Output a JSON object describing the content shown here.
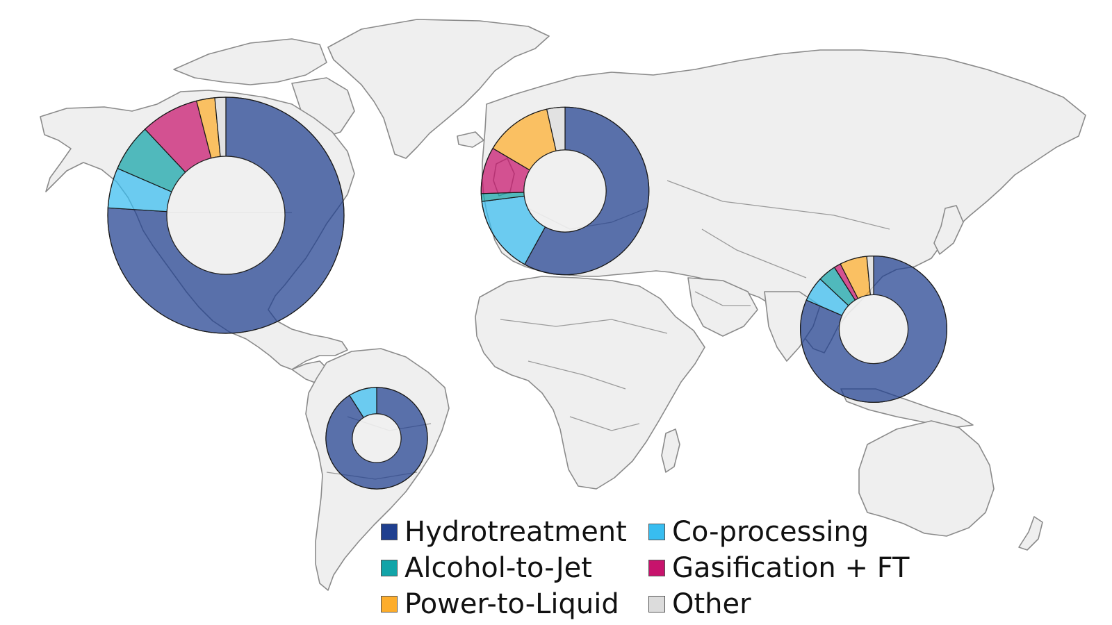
{
  "legend": [
    {
      "key": "hydrotreatment",
      "label": "Hydrotreatment",
      "color": "#1f3f8f"
    },
    {
      "key": "co_processing",
      "label": "Co-processing",
      "color": "#38bdf0"
    },
    {
      "key": "alcohol_to_jet",
      "label": "Alcohol-to-Jet",
      "color": "#12a4a8"
    },
    {
      "key": "gasification_ft",
      "label": "Gasification + FT",
      "color": "#c7136c"
    },
    {
      "key": "power_to_liquid",
      "label": "Power-to-Liquid",
      "color": "#fdad2b"
    },
    {
      "key": "other",
      "label": "Other",
      "color": "#dcdcdc"
    }
  ],
  "chart_data": [
    {
      "type": "pie",
      "region": "North America",
      "series": [
        "Hydrotreatment",
        "Co-processing",
        "Alcohol-to-Jet",
        "Gasification + FT",
        "Power-to-Liquid",
        "Other"
      ],
      "values": [
        76.0,
        5.5,
        6.5,
        8.0,
        2.5,
        1.5
      ],
      "relative_size": 1.0
    },
    {
      "type": "pie",
      "region": "Europe",
      "series": [
        "Hydrotreatment",
        "Co-processing",
        "Alcohol-to-Jet",
        "Gasification + FT",
        "Power-to-Liquid",
        "Other"
      ],
      "values": [
        58.0,
        15.0,
        1.5,
        9.0,
        13.0,
        3.5
      ],
      "relative_size": 0.71
    },
    {
      "type": "pie",
      "region": "Asia-Pacific",
      "series": [
        "Hydrotreatment",
        "Co-processing",
        "Alcohol-to-Jet",
        "Gasification + FT",
        "Power-to-Liquid",
        "Other"
      ],
      "values": [
        81.5,
        5.5,
        4.0,
        1.5,
        6.0,
        1.5
      ],
      "relative_size": 0.62
    },
    {
      "type": "pie",
      "region": "South America",
      "series": [
        "Hydrotreatment",
        "Co-processing",
        "Alcohol-to-Jet",
        "Gasification + FT",
        "Power-to-Liquid",
        "Other"
      ],
      "values": [
        91.0,
        9.0,
        0,
        0,
        0,
        0
      ],
      "relative_size": 0.43
    }
  ]
}
